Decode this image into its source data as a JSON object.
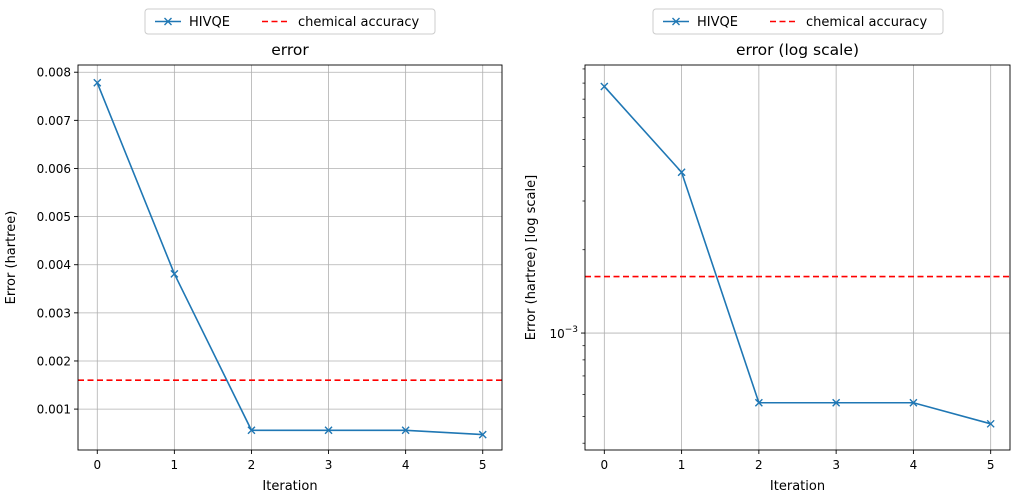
{
  "chart_data": [
    {
      "type": "line",
      "title": "error",
      "xlabel": "Iteration",
      "ylabel": "Error (hartree)",
      "yscale": "linear",
      "x": [
        0,
        1,
        2,
        3,
        4,
        5
      ],
      "xticks": [
        "0",
        "1",
        "2",
        "3",
        "4",
        "5"
      ],
      "xlim": [
        -0.25,
        5.25
      ],
      "ylim": [
        0.00015,
        0.00815
      ],
      "yticks": [
        0.001,
        0.002,
        0.003,
        0.004,
        0.005,
        0.006,
        0.007,
        0.008
      ],
      "ytick_labels": [
        "0.001",
        "0.002",
        "0.003",
        "0.004",
        "0.005",
        "0.006",
        "0.007",
        "0.008"
      ],
      "series": [
        {
          "name": "HIVQE",
          "values": [
            0.00778,
            0.00381,
            0.00056,
            0.00056,
            0.00056,
            0.00047
          ],
          "color": "#1f77b4",
          "marker": "x"
        }
      ],
      "hlines": [
        {
          "name": "chemical accuracy",
          "value": 0.0016,
          "color": "#ff0000",
          "style": "dashed"
        }
      ],
      "grid": true,
      "legend": {
        "placement": "above-center",
        "entries": [
          "HIVQE",
          "chemical accuracy"
        ]
      }
    },
    {
      "type": "line",
      "title": "error (log scale)",
      "xlabel": "Iteration",
      "ylabel": "Error (hartree) [log scale]",
      "yscale": "log",
      "x": [
        0,
        1,
        2,
        3,
        4,
        5
      ],
      "xticks": [
        "0",
        "1",
        "2",
        "3",
        "4",
        "5"
      ],
      "xlim": [
        -0.25,
        5.25
      ],
      "ylim": [
        0.000378,
        0.0093
      ],
      "yticks": [
        0.001
      ],
      "ytick_labels": [
        "10",
        "−3"
      ],
      "series": [
        {
          "name": "HIVQE",
          "values": [
            0.00778,
            0.00381,
            0.00056,
            0.00056,
            0.00056,
            0.00047
          ],
          "color": "#1f77b4",
          "marker": "x"
        }
      ],
      "hlines": [
        {
          "name": "chemical accuracy",
          "value": 0.0016,
          "color": "#ff0000",
          "style": "dashed"
        }
      ],
      "grid": true,
      "legend": {
        "placement": "above-center",
        "entries": [
          "HIVQE",
          "chemical accuracy"
        ]
      }
    }
  ]
}
